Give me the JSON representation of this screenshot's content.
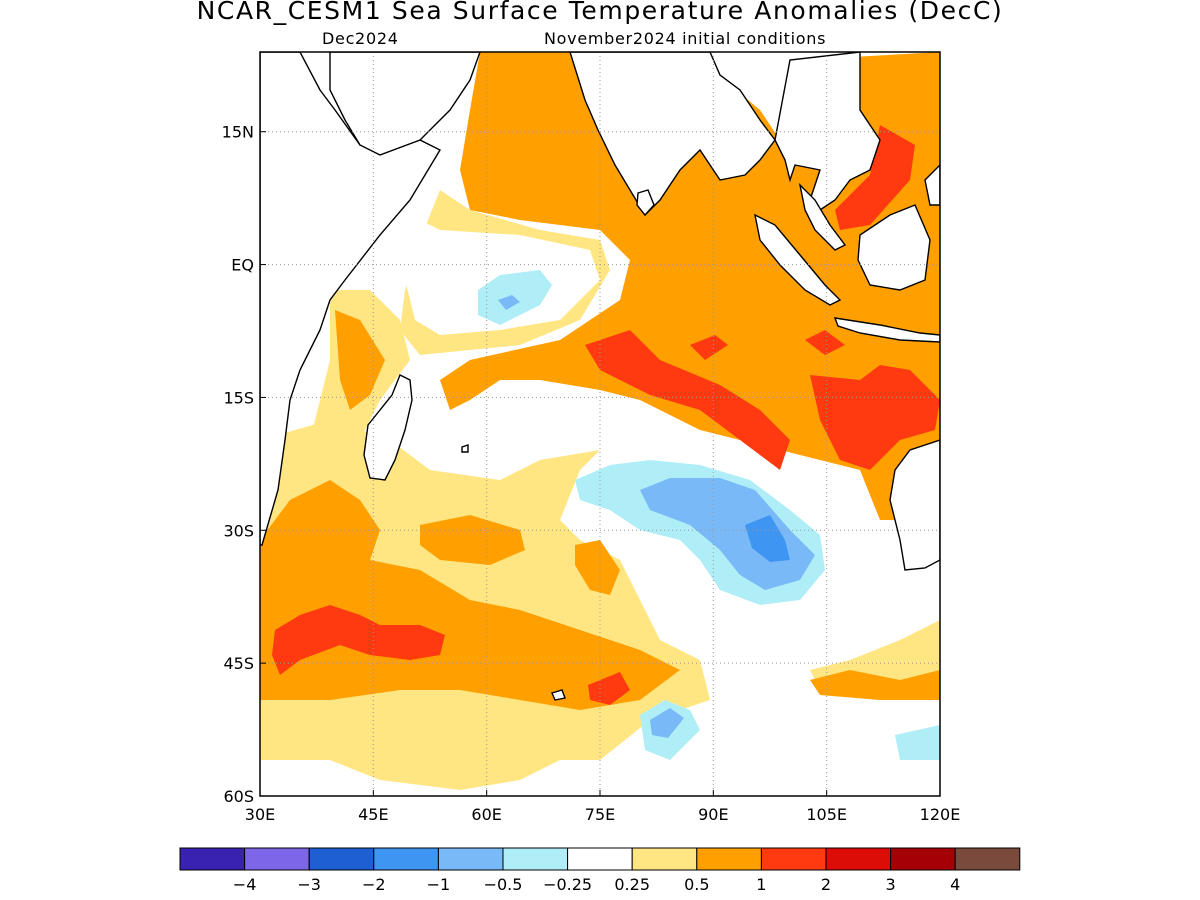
{
  "title": "NCAR_CESM1 Sea Surface Temperature Anomalies (DecC)",
  "subtitle_left": "Dec2024",
  "subtitle_right": "November2024 initial conditions",
  "map": {
    "lon_range": [
      30,
      120
    ],
    "lat_range": [
      -60,
      24
    ],
    "lon_ticks": [
      {
        "value": 30,
        "label": "30E"
      },
      {
        "value": 45,
        "label": "45E"
      },
      {
        "value": 60,
        "label": "60E"
      },
      {
        "value": 75,
        "label": "75E"
      },
      {
        "value": 90,
        "label": "90E"
      },
      {
        "value": 105,
        "label": "105E"
      },
      {
        "value": 120,
        "label": "120E"
      }
    ],
    "lat_ticks": [
      {
        "value": 15,
        "label": "15N"
      },
      {
        "value": 0,
        "label": "EQ"
      },
      {
        "value": -15,
        "label": "15S"
      },
      {
        "value": -30,
        "label": "30S"
      },
      {
        "value": -45,
        "label": "45S"
      },
      {
        "value": -60,
        "label": "60S"
      }
    ],
    "grid": "dotted"
  },
  "colorbar": {
    "colors": [
      "#3a22b0",
      "#7d66e8",
      "#1f5fd4",
      "#3f95f2",
      "#79b9f7",
      "#afeef7",
      "#ffffff",
      "#ffe682",
      "#ffa000",
      "#ff3a10",
      "#dc0c06",
      "#a40005",
      "#7a4a3c"
    ],
    "labels": [
      "−4",
      "−3",
      "−2",
      "−1",
      "−0.5",
      "−0.25",
      "0.25",
      "0.5",
      "1",
      "2",
      "3",
      "4"
    ]
  }
}
